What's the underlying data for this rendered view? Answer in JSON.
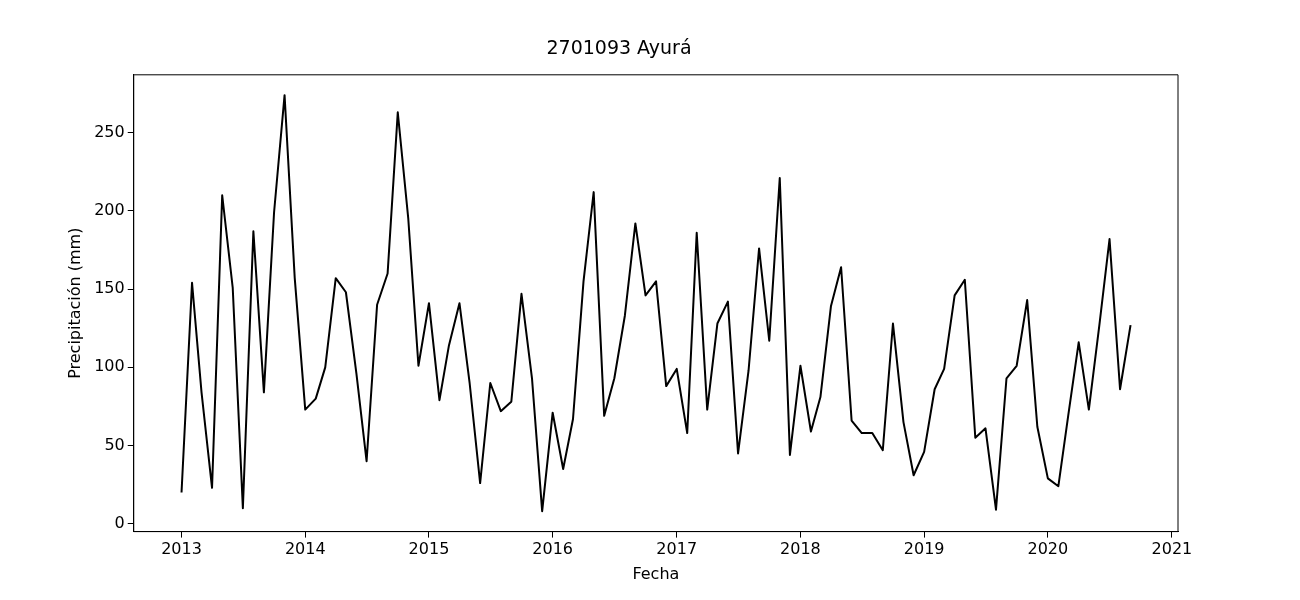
{
  "chart_data": {
    "type": "line",
    "title": "2701093 Ayurá",
    "xlabel": "Fecha",
    "ylabel": "Precipitación (mm)",
    "x": [
      "2013-01",
      "2013-02",
      "2013-03",
      "2013-04",
      "2013-05",
      "2013-06",
      "2013-07",
      "2013-08",
      "2013-09",
      "2013-10",
      "2013-11",
      "2013-12",
      "2014-01",
      "2014-02",
      "2014-03",
      "2014-04",
      "2014-05",
      "2014-06",
      "2014-07",
      "2014-08",
      "2014-09",
      "2014-10",
      "2014-11",
      "2014-12",
      "2015-01",
      "2015-02",
      "2015-03",
      "2015-04",
      "2015-05",
      "2015-06",
      "2015-07",
      "2015-08",
      "2015-09",
      "2015-10",
      "2015-11",
      "2015-12",
      "2016-01",
      "2016-02",
      "2016-03",
      "2016-04",
      "2016-05",
      "2016-06",
      "2016-07",
      "2016-08",
      "2016-09",
      "2016-10",
      "2016-11",
      "2016-12",
      "2017-01",
      "2017-02",
      "2017-03",
      "2017-04",
      "2017-05",
      "2017-06",
      "2017-07",
      "2017-08",
      "2017-09",
      "2017-10",
      "2017-11",
      "2017-12",
      "2018-01",
      "2018-02",
      "2018-03",
      "2018-04",
      "2018-05",
      "2018-06",
      "2018-07",
      "2018-08",
      "2018-09",
      "2018-10",
      "2018-11",
      "2018-12",
      "2019-01",
      "2019-02",
      "2019-03",
      "2019-04",
      "2019-05",
      "2019-06",
      "2019-07",
      "2019-08",
      "2019-09",
      "2019-10",
      "2019-11",
      "2019-12",
      "2020-01",
      "2020-02",
      "2020-03",
      "2020-04",
      "2020-05",
      "2020-06",
      "2020-07",
      "2020-08",
      "2020-09"
    ],
    "series": [
      {
        "color": "#000000",
        "values": [
          20,
          154,
          84,
          23,
          210,
          151,
          10,
          187,
          84,
          199,
          274,
          157,
          73,
          80,
          100,
          157,
          148,
          96,
          40,
          140,
          160,
          263,
          195,
          101,
          141,
          79,
          114,
          141,
          90,
          26,
          90,
          72,
          78,
          147,
          93,
          8,
          71,
          35,
          67,
          155,
          212,
          69,
          93,
          133,
          192,
          146,
          155,
          88,
          99,
          58,
          186,
          73,
          128,
          142,
          45,
          98,
          176,
          117,
          221,
          44,
          101,
          59,
          81,
          139,
          164,
          66,
          58,
          58,
          47,
          128,
          65,
          31,
          46,
          86,
          99,
          146,
          156,
          55,
          61,
          9,
          93,
          101,
          143,
          62,
          29,
          24,
          69,
          116,
          73,
          127,
          182,
          86,
          127
        ]
      }
    ],
    "xlim": [
      "2012-08-13",
      "2021-01-19"
    ],
    "xticks": [
      {
        "value": "2013-01-01",
        "label": "2013"
      },
      {
        "value": "2014-01-01",
        "label": "2014"
      },
      {
        "value": "2015-01-01",
        "label": "2015"
      },
      {
        "value": "2016-01-01",
        "label": "2016"
      },
      {
        "value": "2017-01-01",
        "label": "2017"
      },
      {
        "value": "2018-01-01",
        "label": "2018"
      },
      {
        "value": "2019-01-01",
        "label": "2019"
      },
      {
        "value": "2020-01-01",
        "label": "2020"
      },
      {
        "value": "2021-01-01",
        "label": "2021"
      }
    ],
    "ylim": [
      -5,
      287
    ],
    "yticks": [
      0,
      50,
      100,
      150,
      200,
      250
    ],
    "grid": false,
    "legend": false,
    "marker": "none",
    "line_style": "solid"
  }
}
